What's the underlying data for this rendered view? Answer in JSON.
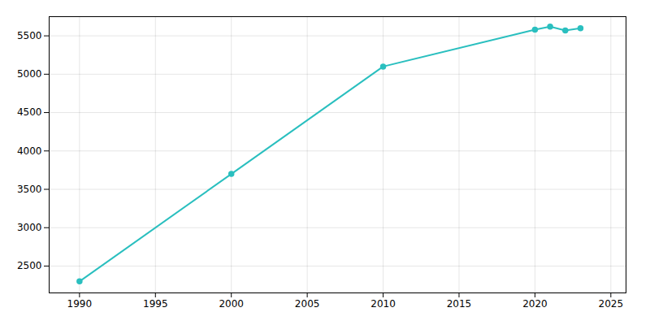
{
  "chart_data": {
    "type": "line",
    "x": [
      1990,
      2000,
      2010,
      2020,
      2021,
      2022,
      2023
    ],
    "values": [
      2300,
      3700,
      5100,
      5580,
      5620,
      5570,
      5600
    ],
    "color": "#2abfbf",
    "marker": "circle",
    "xlim": [
      1988,
      2026
    ],
    "ylim": [
      2150,
      5750
    ],
    "xticks": [
      1990,
      1995,
      2000,
      2005,
      2010,
      2015,
      2020,
      2025
    ],
    "yticks": [
      2500,
      3000,
      3500,
      4000,
      4500,
      5000,
      5500
    ],
    "grid": true
  }
}
